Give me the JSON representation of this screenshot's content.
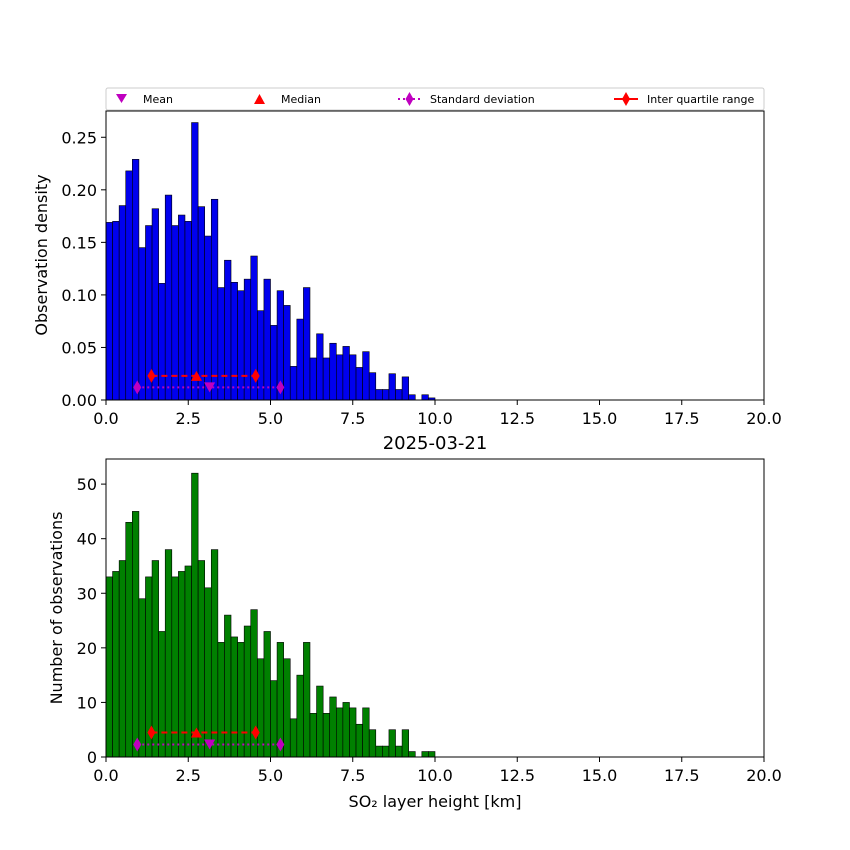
{
  "figure": {
    "title": "2025-03-21"
  },
  "legend": {
    "placement": "top, above upper plot",
    "items": [
      {
        "label": "Mean",
        "marker": "triangle-down",
        "color": "#bf00bf"
      },
      {
        "label": "Median",
        "marker": "triangle-up",
        "color": "#ff0000"
      },
      {
        "label": "Standard deviation",
        "marker": "thin-diamond",
        "line": "dotted",
        "color": "#bf00bf"
      },
      {
        "label": "Inter quartile range",
        "marker": "thin-diamond",
        "line": "solid",
        "color": "#ff0000"
      }
    ]
  },
  "chart_data": [
    {
      "type": "bar",
      "panel": "top",
      "ylabel": "Observation density",
      "xlabel": "",
      "bar_color": "#0000ee",
      "edge_color": "#000000",
      "bin_width": 0.2,
      "bin_start": 0.0,
      "xlim": [
        0,
        20
      ],
      "ylim": [
        0,
        0.275
      ],
      "xticks": [
        "0.0",
        "2.5",
        "5.0",
        "7.5",
        "10.0",
        "12.5",
        "15.0",
        "17.5",
        "20.0"
      ],
      "xtick_values": [
        0,
        2.5,
        5,
        7.5,
        10,
        12.5,
        15,
        17.5,
        20
      ],
      "yticks": [
        "0.00",
        "0.05",
        "0.10",
        "0.15",
        "0.20",
        "0.25"
      ],
      "ytick_values": [
        0,
        0.05,
        0.1,
        0.15,
        0.2,
        0.25
      ],
      "values": [
        0.169,
        0.17,
        0.185,
        0.218,
        0.229,
        0.145,
        0.166,
        0.182,
        0.111,
        0.195,
        0.166,
        0.176,
        0.17,
        0.264,
        0.184,
        0.156,
        0.191,
        0.107,
        0.133,
        0.112,
        0.104,
        0.115,
        0.137,
        0.085,
        0.115,
        0.071,
        0.104,
        0.09,
        0.032,
        0.077,
        0.107,
        0.04,
        0.063,
        0.04,
        0.054,
        0.043,
        0.051,
        0.043,
        0.031,
        0.046,
        0.026,
        0.01,
        0.01,
        0.025,
        0.01,
        0.022,
        0.005,
        0.0,
        0.005,
        0.002
      ],
      "stats": {
        "mean": 3.15,
        "median": 2.75,
        "std_range": [
          0.95,
          5.3
        ],
        "iqr_range": [
          1.38,
          4.55
        ],
        "mean_marker_y": 0.012,
        "std_marker_y": 0.012,
        "median_marker_y": 0.023,
        "iqr_marker_y": 0.023
      }
    },
    {
      "type": "bar",
      "panel": "bottom",
      "ylabel": "Number of observations",
      "xlabel": "SO₂ layer height [km]",
      "bar_color": "#008000",
      "edge_color": "#000000",
      "bin_width": 0.2,
      "bin_start": 0.0,
      "xlim": [
        0,
        20
      ],
      "ylim": [
        0,
        54.6
      ],
      "xticks": [
        "0.0",
        "2.5",
        "5.0",
        "7.5",
        "10.0",
        "12.5",
        "15.0",
        "17.5",
        "20.0"
      ],
      "xtick_values": [
        0,
        2.5,
        5,
        7.5,
        10,
        12.5,
        15,
        17.5,
        20
      ],
      "yticks": [
        "0",
        "10",
        "20",
        "30",
        "40",
        "50"
      ],
      "ytick_values": [
        0,
        10,
        20,
        30,
        40,
        50
      ],
      "values": [
        33,
        34,
        36,
        43,
        45,
        29,
        33,
        36,
        23,
        38,
        33,
        34,
        35,
        52,
        36,
        31,
        38,
        21,
        26,
        22,
        21,
        24,
        27,
        18,
        23,
        14,
        21,
        18,
        7,
        15,
        21,
        8,
        13,
        8,
        11,
        9,
        10,
        9,
        6,
        9,
        5,
        2,
        2,
        5,
        2,
        5,
        1,
        0,
        1,
        1
      ],
      "stats": {
        "mean": 3.15,
        "median": 2.75,
        "std_range": [
          0.95,
          5.3
        ],
        "iqr_range": [
          1.38,
          4.55
        ],
        "mean_marker_y": 2.3,
        "std_marker_y": 2.3,
        "median_marker_y": 4.5,
        "iqr_marker_y": 4.5
      }
    }
  ]
}
